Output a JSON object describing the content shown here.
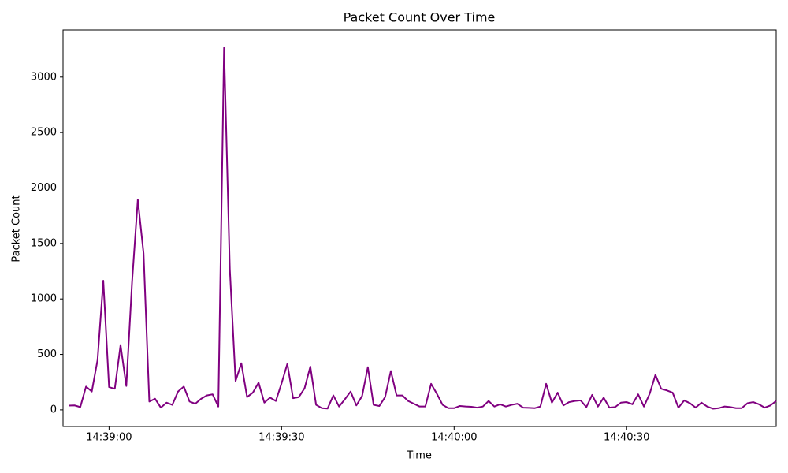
{
  "chart_data": {
    "type": "line",
    "title": "Packet Count Over Time",
    "x_label": "Time",
    "y_label": "Packet Count",
    "color": "#800080",
    "x": [
      "14:38:53",
      "14:38:54",
      "14:38:55",
      "14:38:56",
      "14:38:57",
      "14:38:58",
      "14:38:59",
      "14:39:00",
      "14:39:01",
      "14:39:02",
      "14:39:03",
      "14:39:04",
      "14:39:05",
      "14:39:06",
      "14:39:07",
      "14:39:08",
      "14:39:09",
      "14:39:10",
      "14:39:11",
      "14:39:12",
      "14:39:13",
      "14:39:14",
      "14:39:15",
      "14:39:16",
      "14:39:17",
      "14:39:18",
      "14:39:19",
      "14:39:20",
      "14:39:21",
      "14:39:22",
      "14:39:23",
      "14:39:24",
      "14:39:25",
      "14:39:26",
      "14:39:27",
      "14:39:28",
      "14:39:29",
      "14:39:30",
      "14:39:31",
      "14:39:32",
      "14:39:33",
      "14:39:34",
      "14:39:35",
      "14:39:36",
      "14:39:37",
      "14:39:38",
      "14:39:39",
      "14:39:40",
      "14:39:41",
      "14:39:42",
      "14:39:43",
      "14:39:44",
      "14:39:45",
      "14:39:46",
      "14:39:47",
      "14:39:48",
      "14:39:49",
      "14:39:50",
      "14:39:51",
      "14:39:52",
      "14:39:53",
      "14:39:54",
      "14:39:55",
      "14:39:56",
      "14:39:57",
      "14:39:58",
      "14:39:59",
      "14:40:00",
      "14:40:01",
      "14:40:02",
      "14:40:03",
      "14:40:04",
      "14:40:05",
      "14:40:06",
      "14:40:07",
      "14:40:08",
      "14:40:09",
      "14:40:10",
      "14:40:11",
      "14:40:12",
      "14:40:13",
      "14:40:14",
      "14:40:15",
      "14:40:16",
      "14:40:17",
      "14:40:18",
      "14:40:19",
      "14:40:20",
      "14:40:21",
      "14:40:22",
      "14:40:23",
      "14:40:24",
      "14:40:25",
      "14:40:26",
      "14:40:27",
      "14:40:28",
      "14:40:29",
      "14:40:30",
      "14:40:31",
      "14:40:32",
      "14:40:33",
      "14:40:34",
      "14:40:35",
      "14:40:36",
      "14:40:37",
      "14:40:38",
      "14:40:39",
      "14:40:40",
      "14:40:41",
      "14:40:42",
      "14:40:43",
      "14:40:44",
      "14:40:45",
      "14:40:46",
      "14:40:47",
      "14:40:48",
      "14:40:49",
      "14:40:50",
      "14:40:51",
      "14:40:52",
      "14:40:53",
      "14:40:54",
      "14:40:55",
      "14:40:56"
    ],
    "values": [
      38,
      40,
      25,
      210,
      165,
      450,
      1165,
      205,
      190,
      585,
      215,
      1150,
      1895,
      1410,
      75,
      100,
      20,
      65,
      45,
      165,
      210,
      75,
      55,
      100,
      130,
      140,
      30,
      3265,
      1270,
      260,
      420,
      115,
      155,
      245,
      65,
      110,
      80,
      240,
      415,
      105,
      115,
      195,
      390,
      45,
      15,
      12,
      130,
      30,
      95,
      165,
      40,
      125,
      385,
      45,
      35,
      115,
      350,
      130,
      130,
      80,
      55,
      30,
      30,
      235,
      145,
      45,
      15,
      15,
      35,
      30,
      28,
      20,
      30,
      80,
      30,
      50,
      30,
      45,
      55,
      20,
      18,
      15,
      30,
      235,
      65,
      155,
      40,
      70,
      80,
      85,
      25,
      135,
      30,
      110,
      20,
      25,
      65,
      70,
      50,
      140,
      30,
      145,
      315,
      190,
      175,
      155,
      20,
      85,
      60,
      20,
      65,
      30,
      10,
      15,
      30,
      25,
      15,
      15,
      60,
      70,
      50,
      20,
      40,
      80
    ],
    "xlim": [
      "14:38:52",
      "14:40:56"
    ],
    "xticks": [
      "14:39:00",
      "14:39:30",
      "14:40:00",
      "14:40:30"
    ],
    "ylim": [
      -150,
      3425
    ],
    "yticks": [
      0,
      500,
      1000,
      1500,
      2000,
      2500,
      3000
    ],
    "grid": false
  }
}
